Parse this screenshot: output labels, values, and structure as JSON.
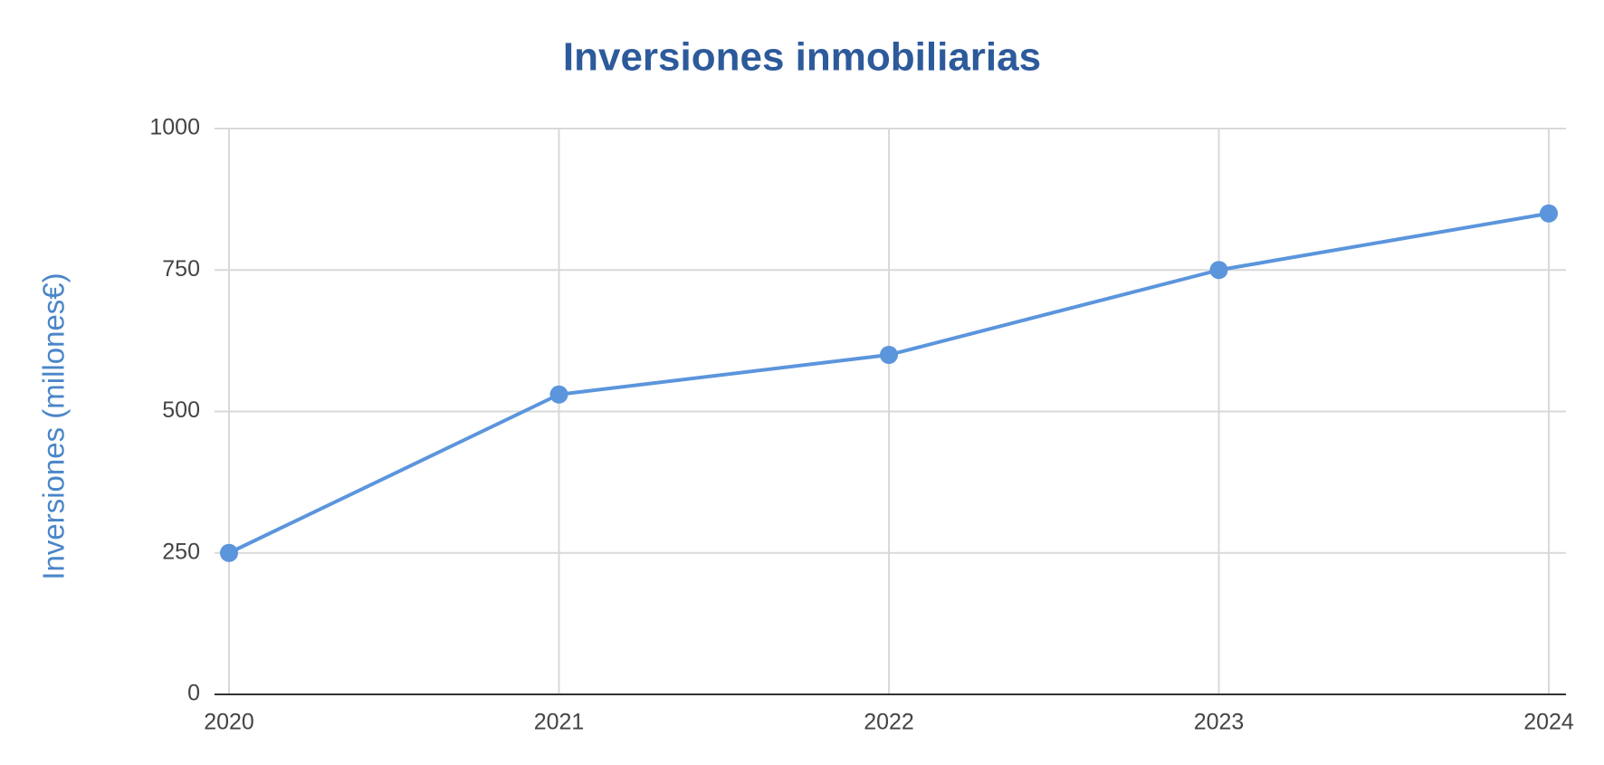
{
  "chart_data": {
    "type": "line",
    "title": "Inversiones inmobiliarias",
    "y_label": "Inversiones (millones€)",
    "x": [
      2020,
      2021,
      2022,
      2023,
      2024
    ],
    "xlim": [
      2020,
      2024
    ],
    "xticks": [
      2020,
      2021,
      2022,
      2023,
      2024
    ],
    "series": [
      {
        "color": "#5b95dc",
        "values": [
          250,
          530,
          600,
          750,
          850
        ]
      }
    ],
    "ylim": [
      0,
      1000
    ],
    "yticks": [
      0,
      250,
      500,
      750,
      1000
    ],
    "grid": true
  }
}
